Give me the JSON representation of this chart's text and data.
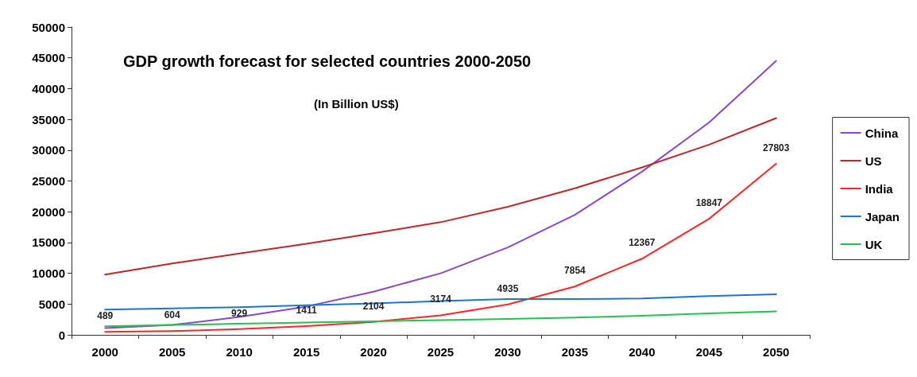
{
  "chart_data": {
    "type": "line",
    "title": "GDP growth forecast for selected countries 2000-2050",
    "subtitle": "(In Billion US$)",
    "categories": [
      "2000",
      "2005",
      "2010",
      "2015",
      "2020",
      "2025",
      "2030",
      "2035",
      "2040",
      "2045",
      "2050"
    ],
    "series": [
      {
        "name": "China",
        "color": "#8a48c4",
        "values": [
          1100,
          1600,
          2900,
          4600,
          7000,
          10000,
          14200,
          19500,
          26500,
          34500,
          44500
        ]
      },
      {
        "name": "US",
        "color": "#c0262c",
        "values": [
          9800,
          11600,
          13200,
          14800,
          16500,
          18300,
          20800,
          23800,
          27200,
          30900,
          35200
        ]
      },
      {
        "name": "India",
        "color": "#ff2626",
        "values": [
          489,
          604,
          929,
          1411,
          2104,
          3174,
          4935,
          7854,
          12367,
          18847,
          27803
        ],
        "value_labels": [
          "489",
          "604",
          "929",
          "1411",
          "2104",
          "3174",
          "4935",
          "7854",
          "12367",
          "18847",
          "27803"
        ]
      },
      {
        "name": "Japan",
        "color": "#1c76d0",
        "values": [
          4100,
          4300,
          4500,
          4800,
          5100,
          5500,
          5800,
          5800,
          5900,
          6300,
          6600
        ]
      },
      {
        "name": "UK",
        "color": "#28c050",
        "values": [
          1400,
          1600,
          1800,
          2000,
          2200,
          2400,
          2600,
          2800,
          3100,
          3500,
          3800
        ]
      }
    ],
    "ylim": [
      0,
      50000
    ],
    "yticks": [
      0,
      5000,
      10000,
      15000,
      20000,
      25000,
      30000,
      35000,
      40000,
      45000,
      50000
    ],
    "grid": false,
    "legend": "right",
    "marker": "none",
    "line_style": "solid"
  }
}
